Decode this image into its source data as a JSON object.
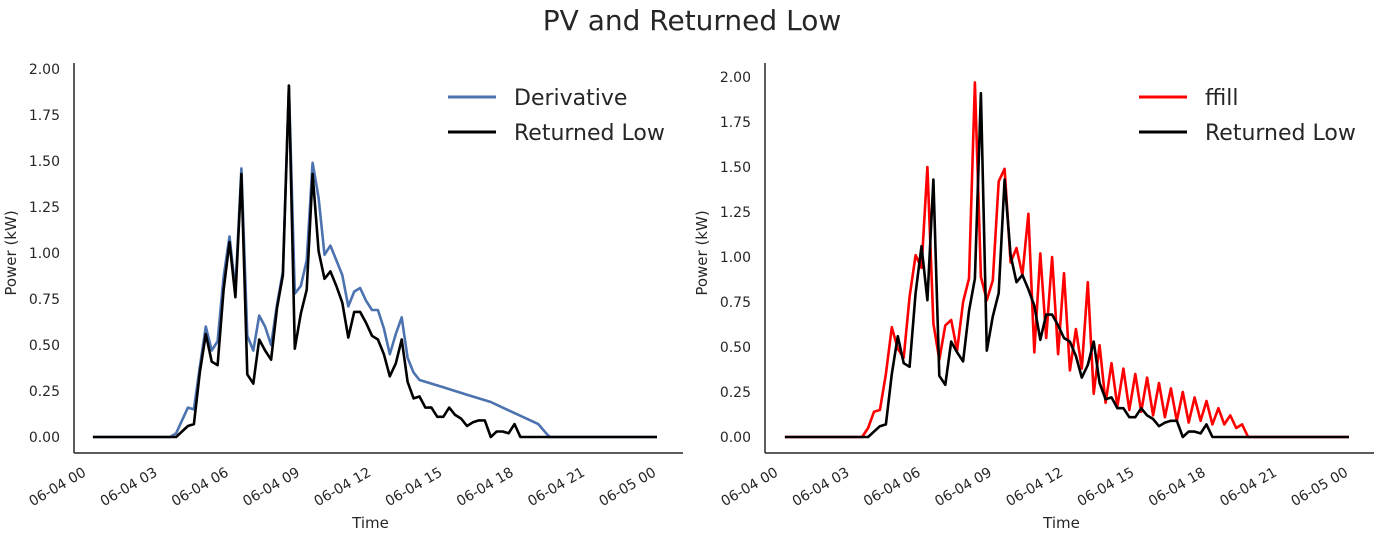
{
  "figure": {
    "title": "PV and Returned Low"
  },
  "chart_data": [
    {
      "type": "line",
      "xlabel": "Time",
      "ylabel": "Power (kW)",
      "ylim": [
        -0.1,
        2.05
      ],
      "xlim": [
        "06-04 00",
        "06-05 00"
      ],
      "yticks": [
        "0.00",
        "0.25",
        "0.50",
        "0.75",
        "1.00",
        "1.25",
        "1.50",
        "1.75",
        "2.00"
      ],
      "xticks": [
        "06-04 00",
        "06-04 03",
        "06-04 06",
        "06-04 09",
        "06-04 12",
        "06-04 15",
        "06-04 18",
        "06-04 21",
        "06-05 00"
      ],
      "legend_position": "top-right",
      "grid": false,
      "series": [
        {
          "name": "Derivative",
          "color": "#4c72b0",
          "points": [
            [
              0.25,
              0
            ],
            [
              3.5,
              0
            ],
            [
              3.75,
              0.02
            ],
            [
              4.0,
              0.09
            ],
            [
              4.25,
              0.16
            ],
            [
              4.5,
              0.15
            ],
            [
              4.75,
              0.38
            ],
            [
              5.0,
              0.6
            ],
            [
              5.25,
              0.47
            ],
            [
              5.5,
              0.52
            ],
            [
              5.75,
              0.87
            ],
            [
              6.0,
              1.09
            ],
            [
              6.25,
              0.8
            ],
            [
              6.5,
              1.46
            ],
            [
              6.75,
              0.55
            ],
            [
              7.0,
              0.47
            ],
            [
              7.25,
              0.66
            ],
            [
              7.5,
              0.6
            ],
            [
              7.75,
              0.5
            ],
            [
              8.0,
              0.72
            ],
            [
              8.25,
              0.9
            ],
            [
              8.5,
              1.91
            ],
            [
              8.75,
              0.78
            ],
            [
              9.0,
              0.82
            ],
            [
              9.25,
              0.96
            ],
            [
              9.5,
              1.49
            ],
            [
              9.75,
              1.3
            ],
            [
              10.0,
              0.99
            ],
            [
              10.25,
              1.04
            ],
            [
              10.5,
              0.96
            ],
            [
              10.75,
              0.88
            ],
            [
              11.0,
              0.71
            ],
            [
              11.25,
              0.79
            ],
            [
              11.5,
              0.81
            ],
            [
              11.75,
              0.74
            ],
            [
              12.0,
              0.69
            ],
            [
              12.25,
              0.69
            ],
            [
              12.5,
              0.59
            ],
            [
              12.75,
              0.45
            ],
            [
              13.0,
              0.56
            ],
            [
              13.25,
              0.65
            ],
            [
              13.5,
              0.43
            ],
            [
              13.75,
              0.35
            ],
            [
              14.0,
              0.31
            ],
            [
              14.5,
              0.29
            ],
            [
              15.0,
              0.27
            ],
            [
              15.5,
              0.25
            ],
            [
              16.0,
              0.23
            ],
            [
              16.5,
              0.21
            ],
            [
              17.0,
              0.19
            ],
            [
              17.5,
              0.16
            ],
            [
              18.0,
              0.13
            ],
            [
              18.5,
              0.1
            ],
            [
              19.0,
              0.07
            ],
            [
              19.4,
              0.01
            ],
            [
              19.5,
              0
            ],
            [
              24.0,
              0
            ]
          ]
        },
        {
          "name": "Returned Low",
          "color": "#000000",
          "points": [
            [
              0.25,
              0
            ],
            [
              3.5,
              0
            ],
            [
              3.75,
              0
            ],
            [
              4.0,
              0.03
            ],
            [
              4.25,
              0.06
            ],
            [
              4.5,
              0.07
            ],
            [
              4.75,
              0.35
            ],
            [
              5.0,
              0.56
            ],
            [
              5.25,
              0.41
            ],
            [
              5.5,
              0.39
            ],
            [
              5.75,
              0.8
            ],
            [
              6.0,
              1.06
            ],
            [
              6.25,
              0.76
            ],
            [
              6.5,
              1.43
            ],
            [
              6.75,
              0.34
            ],
            [
              7.0,
              0.29
            ],
            [
              7.25,
              0.53
            ],
            [
              7.5,
              0.47
            ],
            [
              7.75,
              0.42
            ],
            [
              8.0,
              0.7
            ],
            [
              8.25,
              0.88
            ],
            [
              8.5,
              1.91
            ],
            [
              8.75,
              0.48
            ],
            [
              9.0,
              0.67
            ],
            [
              9.25,
              0.8
            ],
            [
              9.5,
              1.43
            ],
            [
              9.75,
              1.01
            ],
            [
              10.0,
              0.86
            ],
            [
              10.25,
              0.9
            ],
            [
              10.5,
              0.82
            ],
            [
              10.75,
              0.73
            ],
            [
              11.0,
              0.54
            ],
            [
              11.25,
              0.68
            ],
            [
              11.5,
              0.68
            ],
            [
              11.75,
              0.62
            ],
            [
              12.0,
              0.55
            ],
            [
              12.25,
              0.53
            ],
            [
              12.5,
              0.45
            ],
            [
              12.75,
              0.33
            ],
            [
              13.0,
              0.4
            ],
            [
              13.25,
              0.53
            ],
            [
              13.5,
              0.3
            ],
            [
              13.75,
              0.21
            ],
            [
              14.0,
              0.22
            ],
            [
              14.25,
              0.16
            ],
            [
              14.5,
              0.16
            ],
            [
              14.75,
              0.11
            ],
            [
              15.0,
              0.11
            ],
            [
              15.25,
              0.16
            ],
            [
              15.5,
              0.12
            ],
            [
              15.75,
              0.1
            ],
            [
              16.0,
              0.06
            ],
            [
              16.25,
              0.08
            ],
            [
              16.5,
              0.09
            ],
            [
              16.75,
              0.09
            ],
            [
              17.0,
              0.0
            ],
            [
              17.25,
              0.03
            ],
            [
              17.5,
              0.03
            ],
            [
              17.75,
              0.02
            ],
            [
              18.0,
              0.07
            ],
            [
              18.25,
              0.0
            ],
            [
              24.0,
              0
            ]
          ]
        }
      ]
    },
    {
      "type": "line",
      "xlabel": "Time",
      "ylabel": "Power (kW)",
      "ylim": [
        -0.1,
        2.05
      ],
      "xlim": [
        "06-04 00",
        "06-05 00"
      ],
      "yticks": [
        "0.00",
        "0.25",
        "0.50",
        "0.75",
        "1.00",
        "1.25",
        "1.50",
        "1.75",
        "2.00"
      ],
      "xticks": [
        "06-04 00",
        "06-04 03",
        "06-04 06",
        "06-04 09",
        "06-04 12",
        "06-04 15",
        "06-04 18",
        "06-04 21",
        "06-05 00"
      ],
      "legend_position": "top-right",
      "grid": false,
      "series": [
        {
          "name": "ffill",
          "color": "#ff0000",
          "points": [
            [
              0.25,
              0
            ],
            [
              3.5,
              0
            ],
            [
              3.75,
              0.05
            ],
            [
              4.0,
              0.14
            ],
            [
              4.25,
              0.15
            ],
            [
              4.5,
              0.35
            ],
            [
              4.75,
              0.61
            ],
            [
              5.0,
              0.49
            ],
            [
              5.25,
              0.44
            ],
            [
              5.5,
              0.78
            ],
            [
              5.75,
              1.01
            ],
            [
              6.0,
              0.94
            ],
            [
              6.25,
              1.5
            ],
            [
              6.5,
              0.63
            ],
            [
              6.75,
              0.43
            ],
            [
              7.0,
              0.62
            ],
            [
              7.25,
              0.65
            ],
            [
              7.5,
              0.48
            ],
            [
              7.75,
              0.75
            ],
            [
              8.0,
              0.88
            ],
            [
              8.25,
              1.97
            ],
            [
              8.5,
              0.89
            ],
            [
              8.75,
              0.76
            ],
            [
              9.0,
              0.87
            ],
            [
              9.25,
              1.42
            ],
            [
              9.5,
              1.49
            ],
            [
              9.75,
              0.97
            ],
            [
              10.0,
              1.05
            ],
            [
              10.25,
              0.9
            ],
            [
              10.5,
              1.24
            ],
            [
              10.75,
              0.47
            ],
            [
              11.0,
              1.02
            ],
            [
              11.25,
              0.55
            ],
            [
              11.5,
              1.0
            ],
            [
              11.75,
              0.46
            ],
            [
              12.0,
              0.91
            ],
            [
              12.25,
              0.37
            ],
            [
              12.5,
              0.6
            ],
            [
              12.75,
              0.38
            ],
            [
              13.0,
              0.86
            ],
            [
              13.25,
              0.24
            ],
            [
              13.5,
              0.51
            ],
            [
              13.75,
              0.19
            ],
            [
              14.0,
              0.41
            ],
            [
              14.25,
              0.17
            ],
            [
              14.5,
              0.38
            ],
            [
              14.75,
              0.15
            ],
            [
              15.0,
              0.35
            ],
            [
              15.25,
              0.14
            ],
            [
              15.5,
              0.33
            ],
            [
              15.75,
              0.12
            ],
            [
              16.0,
              0.3
            ],
            [
              16.25,
              0.11
            ],
            [
              16.5,
              0.27
            ],
            [
              16.75,
              0.09
            ],
            [
              17.0,
              0.25
            ],
            [
              17.25,
              0.08
            ],
            [
              17.5,
              0.22
            ],
            [
              17.75,
              0.09
            ],
            [
              18.0,
              0.2
            ],
            [
              18.25,
              0.07
            ],
            [
              18.5,
              0.16
            ],
            [
              18.75,
              0.07
            ],
            [
              19.0,
              0.12
            ],
            [
              19.25,
              0.05
            ],
            [
              19.5,
              0.07
            ],
            [
              19.75,
              0.0
            ],
            [
              24.0,
              0
            ]
          ]
        },
        {
          "name": "Returned Low",
          "color": "#000000",
          "points": [
            [
              0.25,
              0
            ],
            [
              3.5,
              0
            ],
            [
              3.75,
              0
            ],
            [
              4.0,
              0.03
            ],
            [
              4.25,
              0.06
            ],
            [
              4.5,
              0.07
            ],
            [
              4.75,
              0.35
            ],
            [
              5.0,
              0.56
            ],
            [
              5.25,
              0.41
            ],
            [
              5.5,
              0.39
            ],
            [
              5.75,
              0.8
            ],
            [
              6.0,
              1.06
            ],
            [
              6.25,
              0.76
            ],
            [
              6.5,
              1.43
            ],
            [
              6.75,
              0.34
            ],
            [
              7.0,
              0.29
            ],
            [
              7.25,
              0.53
            ],
            [
              7.5,
              0.47
            ],
            [
              7.75,
              0.42
            ],
            [
              8.0,
              0.7
            ],
            [
              8.25,
              0.88
            ],
            [
              8.5,
              1.91
            ],
            [
              8.75,
              0.48
            ],
            [
              9.0,
              0.67
            ],
            [
              9.25,
              0.8
            ],
            [
              9.5,
              1.43
            ],
            [
              9.75,
              1.01
            ],
            [
              10.0,
              0.86
            ],
            [
              10.25,
              0.9
            ],
            [
              10.5,
              0.82
            ],
            [
              10.75,
              0.73
            ],
            [
              11.0,
              0.54
            ],
            [
              11.25,
              0.68
            ],
            [
              11.5,
              0.68
            ],
            [
              11.75,
              0.62
            ],
            [
              12.0,
              0.55
            ],
            [
              12.25,
              0.53
            ],
            [
              12.5,
              0.45
            ],
            [
              12.75,
              0.33
            ],
            [
              13.0,
              0.4
            ],
            [
              13.25,
              0.53
            ],
            [
              13.5,
              0.3
            ],
            [
              13.75,
              0.21
            ],
            [
              14.0,
              0.22
            ],
            [
              14.25,
              0.16
            ],
            [
              14.5,
              0.16
            ],
            [
              14.75,
              0.11
            ],
            [
              15.0,
              0.11
            ],
            [
              15.25,
              0.16
            ],
            [
              15.5,
              0.12
            ],
            [
              15.75,
              0.1
            ],
            [
              16.0,
              0.06
            ],
            [
              16.25,
              0.08
            ],
            [
              16.5,
              0.09
            ],
            [
              16.75,
              0.09
            ],
            [
              17.0,
              0.0
            ],
            [
              17.25,
              0.03
            ],
            [
              17.5,
              0.03
            ],
            [
              17.75,
              0.02
            ],
            [
              18.0,
              0.07
            ],
            [
              18.25,
              0.0
            ],
            [
              24.0,
              0
            ]
          ]
        }
      ]
    }
  ]
}
